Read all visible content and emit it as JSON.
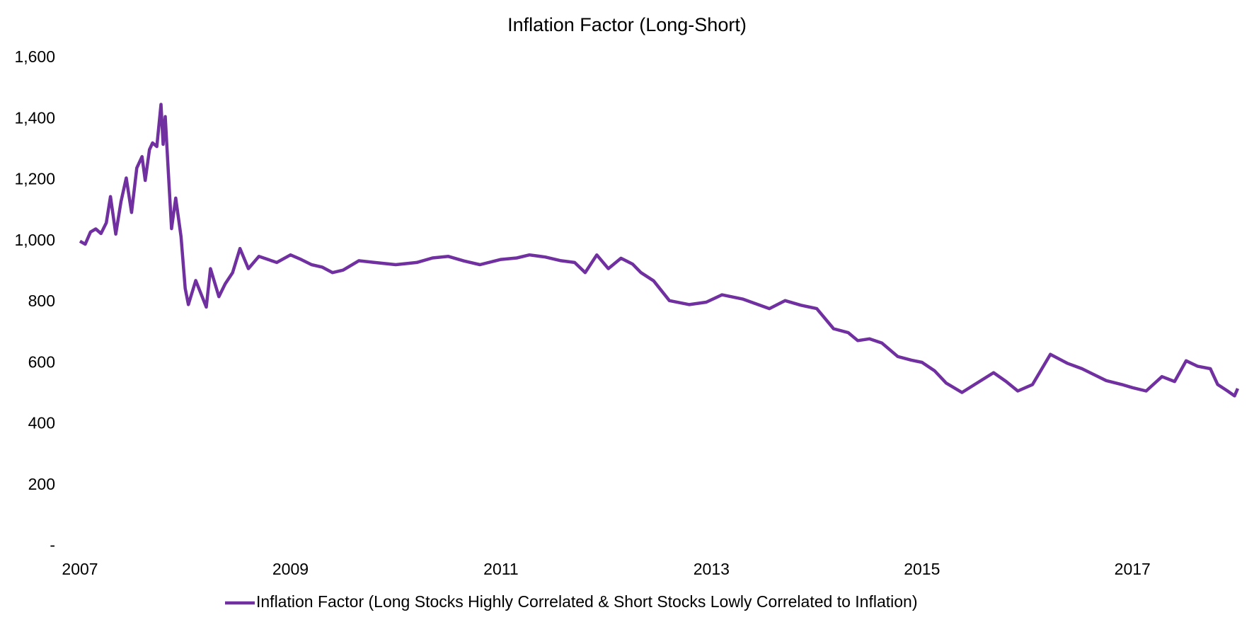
{
  "chart_data": {
    "type": "line",
    "title": "Inflation Factor (Long-Short)",
    "x": [
      2007.0,
      2007.05,
      2007.1,
      2007.15,
      2007.2,
      2007.25,
      2007.29,
      2007.34,
      2007.39,
      2007.44,
      2007.49,
      2007.54,
      2007.59,
      2007.62,
      2007.66,
      2007.69,
      2007.73,
      2007.77,
      2007.79,
      2007.81,
      2007.84,
      2007.87,
      2007.91,
      2007.96,
      2008.0,
      2008.03,
      2008.1,
      2008.2,
      2008.24,
      2008.32,
      2008.38,
      2008.45,
      2008.52,
      2008.6,
      2008.7,
      2008.87,
      2009.0,
      2009.1,
      2009.2,
      2009.3,
      2009.4,
      2009.5,
      2009.65,
      2009.8,
      2010.0,
      2010.2,
      2010.35,
      2010.5,
      2010.65,
      2010.8,
      2011.0,
      2011.15,
      2011.27,
      2011.42,
      2011.57,
      2011.7,
      2011.8,
      2011.91,
      2012.02,
      2012.14,
      2012.25,
      2012.33,
      2012.45,
      2012.6,
      2012.79,
      2012.95,
      2013.1,
      2013.3,
      2013.55,
      2013.7,
      2013.85,
      2014.0,
      2014.16,
      2014.3,
      2014.39,
      2014.5,
      2014.62,
      2014.77,
      2014.9,
      2015.0,
      2015.12,
      2015.23,
      2015.38,
      2015.5,
      2015.68,
      2015.8,
      2015.91,
      2016.05,
      2016.22,
      2016.38,
      2016.52,
      2016.65,
      2016.75,
      2016.9,
      2017.0,
      2017.13,
      2017.28,
      2017.4,
      2017.51,
      2017.62,
      2017.74,
      2017.81,
      2017.9,
      2017.97,
      2018.0
    ],
    "series": [
      {
        "name": "Inflation Factor (Long Stocks Highly Correlated & Short Stocks Lowly Correlated to Inflation)",
        "color": "#7030a0",
        "values": [
          1000,
          990,
          1030,
          1040,
          1025,
          1060,
          1146,
          1023,
          1130,
          1207,
          1094,
          1240,
          1277,
          1199,
          1300,
          1322,
          1310,
          1448,
          1317,
          1408,
          1225,
          1041,
          1141,
          1015,
          845,
          792,
          871,
          784,
          910,
          818,
          860,
          897,
          976,
          910,
          950,
          930,
          955,
          940,
          923,
          915,
          897,
          905,
          936,
          930,
          923,
          930,
          945,
          950,
          935,
          923,
          940,
          945,
          955,
          948,
          936,
          930,
          897,
          955,
          910,
          944,
          925,
          897,
          870,
          805,
          792,
          800,
          824,
          810,
          779,
          805,
          790,
          779,
          713,
          700,
          674,
          680,
          666,
          622,
          610,
          603,
          575,
          535,
          504,
          530,
          569,
          540,
          509,
          530,
          629,
          600,
          582,
          560,
          543,
          530,
          520,
          509,
          556,
          540,
          608,
          590,
          582,
          530,
          510,
          493,
          517
        ]
      }
    ],
    "xlim": [
      2007,
      2018
    ],
    "xticks": [
      2007,
      2009,
      2011,
      2013,
      2015,
      2017
    ],
    "ylim": [
      0,
      1600
    ],
    "yticks": [
      {
        "value": 0,
        "label": "-"
      },
      200,
      400,
      600,
      800,
      {
        "value": 1000,
        "label": "1,000"
      },
      {
        "value": 1200,
        "label": "1,200"
      },
      {
        "value": 1400,
        "label": "1,400"
      },
      {
        "value": 1600,
        "label": "1,600"
      }
    ],
    "grid": false,
    "legend": "bottom"
  }
}
